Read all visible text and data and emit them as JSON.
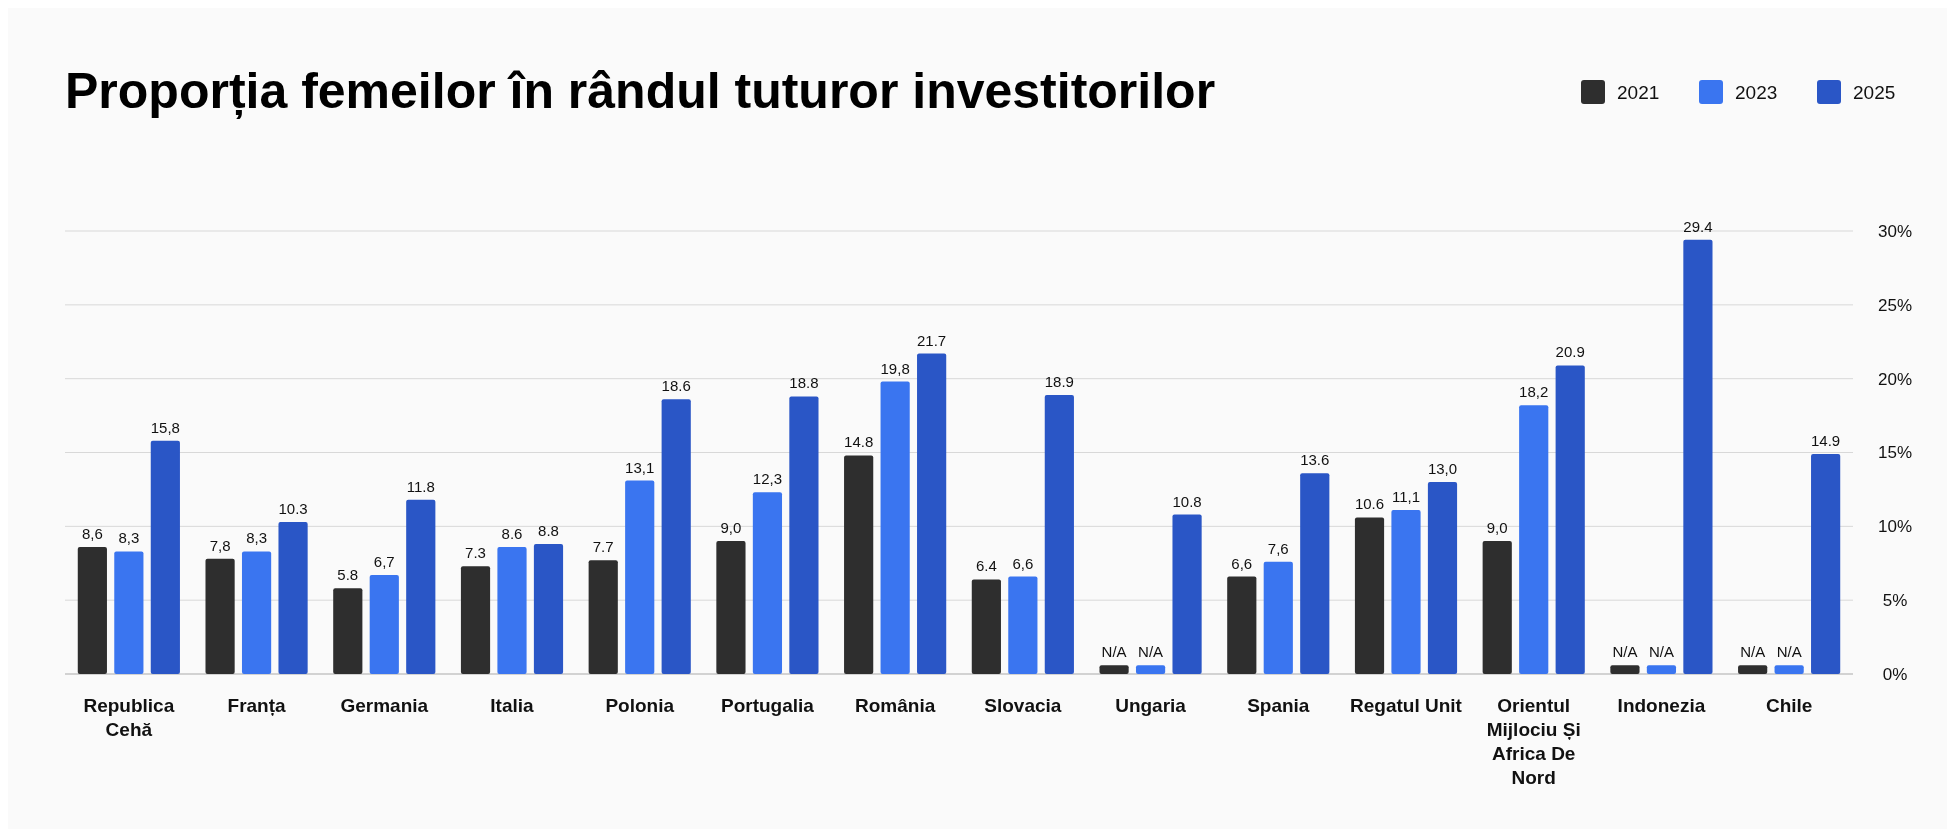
{
  "chart_data": {
    "type": "bar",
    "title": "Proporția femeilor în rândul tuturor investitorilor",
    "categories": [
      "Republica Cehă",
      "Franța",
      "Germania",
      "Italia",
      "Polonia",
      "Portugalia",
      "România",
      "Slovacia",
      "Ungaria",
      "Spania",
      "Regatul Unit",
      "Orientul Mijlociu Și Africa De Nord",
      "Indonezia",
      "Chile"
    ],
    "series": [
      {
        "name": "2021",
        "color": "#2e2e2e",
        "values": [
          8.6,
          7.8,
          5.8,
          7.3,
          7.7,
          9.0,
          14.8,
          6.4,
          0.6,
          6.6,
          10.6,
          9.0,
          0.6,
          0.6
        ],
        "value_labels": [
          "8,6",
          "7,8",
          "5.8",
          "7.3",
          "7.7",
          "9,0",
          "14.8",
          "6.4",
          "N/A",
          "6,6",
          "10.6",
          "9,0",
          "N/A",
          "N/A"
        ]
      },
      {
        "name": "2023",
        "color": "#3a75f0",
        "values": [
          8.3,
          8.3,
          6.7,
          8.6,
          13.1,
          12.3,
          19.8,
          6.6,
          0.6,
          7.6,
          11.1,
          18.2,
          0.6,
          0.6
        ],
        "value_labels": [
          "8,3",
          "8,3",
          "6,7",
          "8.6",
          "13,1",
          "12,3",
          "19,8",
          "6,6",
          "N/A",
          "7,6",
          "11,1",
          "18,2",
          "N/A",
          "N/A"
        ]
      },
      {
        "name": "2025",
        "color": "#2a56c6",
        "values": [
          15.8,
          10.3,
          11.8,
          8.8,
          18.6,
          18.8,
          21.7,
          18.9,
          10.8,
          13.6,
          13.0,
          20.9,
          29.4,
          14.9
        ],
        "value_labels": [
          "15,8",
          "10.3",
          "11.8",
          "8.8",
          "18.6",
          "18.8",
          "21.7",
          "18.9",
          "10.8",
          "13.6",
          "13,0",
          "20.9",
          "29.4",
          "14.9"
        ]
      }
    ],
    "ylim": [
      0,
      30
    ],
    "yticks": [
      {
        "value": 0,
        "label": "0%"
      },
      {
        "value": 5,
        "label": "5%"
      },
      {
        "value": 10,
        "label": "10%"
      },
      {
        "value": 15,
        "label": "15%"
      },
      {
        "value": 20,
        "label": "20%"
      },
      {
        "value": 25,
        "label": "25%"
      },
      {
        "value": 30,
        "label": "30%"
      }
    ],
    "grid": "y",
    "legend": "top right"
  }
}
